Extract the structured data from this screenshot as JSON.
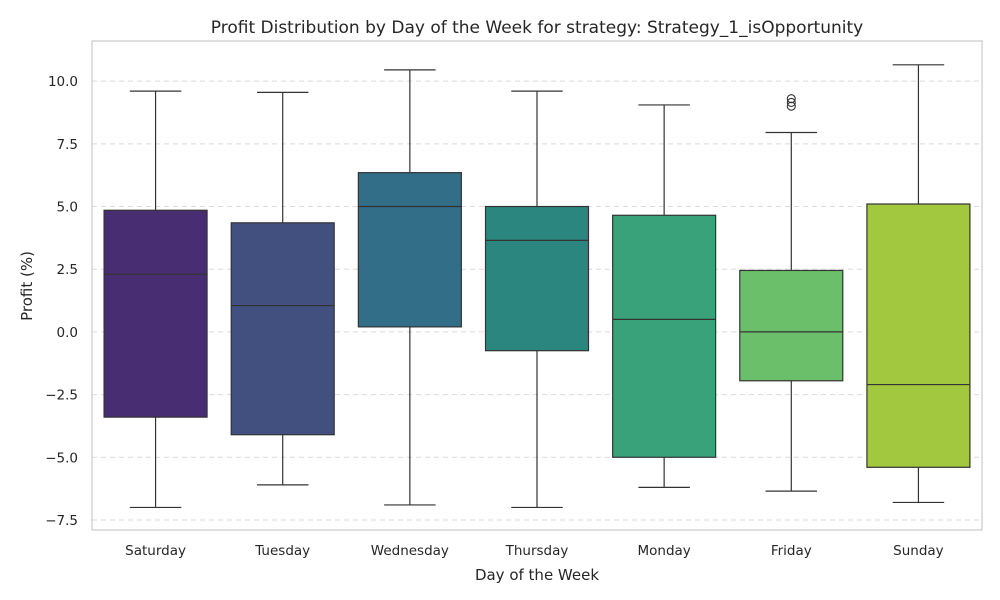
{
  "chart_data": {
    "type": "box",
    "title": "Profit Distribution by Day of the Week for strategy: Strategy_1_isOpportunity",
    "xlabel": "Day of the Week",
    "ylabel": "Profit (%)",
    "ylim": [
      -7.9,
      11.6
    ],
    "yticks": [
      -7.5,
      -5.0,
      -2.5,
      0.0,
      2.5,
      5.0,
      7.5,
      10.0
    ],
    "ytick_labels": [
      "−7.5",
      "−5.0",
      "−2.5",
      "0.0",
      "2.5",
      "5.0",
      "7.5",
      "10.0"
    ],
    "grid": "y-dashed",
    "categories": [
      "Saturday",
      "Tuesday",
      "Wednesday",
      "Thursday",
      "Monday",
      "Friday",
      "Sunday"
    ],
    "boxes": [
      {
        "category": "Saturday",
        "whisker_low": -7.0,
        "q1": -3.4,
        "median": 2.3,
        "q3": 4.85,
        "whisker_high": 9.6,
        "outliers": [],
        "color": "#482d73"
      },
      {
        "category": "Tuesday",
        "whisker_low": -6.1,
        "q1": -4.1,
        "median": 1.05,
        "q3": 4.35,
        "whisker_high": 9.55,
        "outliers": [],
        "color": "#41507f"
      },
      {
        "category": "Wednesday",
        "whisker_low": -6.9,
        "q1": 0.2,
        "median": 5.0,
        "q3": 6.35,
        "whisker_high": 10.45,
        "outliers": [],
        "color": "#336e88"
      },
      {
        "category": "Thursday",
        "whisker_low": -7.0,
        "q1": -0.75,
        "median": 3.65,
        "q3": 5.0,
        "whisker_high": 9.6,
        "outliers": [],
        "color": "#2b867f"
      },
      {
        "category": "Monday",
        "whisker_low": -6.2,
        "q1": -5.0,
        "median": 0.5,
        "q3": 4.65,
        "whisker_high": 9.05,
        "outliers": [],
        "color": "#3aa27b"
      },
      {
        "category": "Friday",
        "whisker_low": -6.35,
        "q1": -1.95,
        "median": 0.0,
        "q3": 2.45,
        "whisker_high": 7.95,
        "outliers": [
          9.0,
          9.15,
          9.3
        ],
        "color": "#6bbf6a"
      },
      {
        "category": "Sunday",
        "whisker_low": -6.8,
        "q1": -5.4,
        "median": -2.1,
        "q3": 5.1,
        "whisker_high": 10.65,
        "outliers": [],
        "color": "#a2c83f"
      }
    ]
  }
}
